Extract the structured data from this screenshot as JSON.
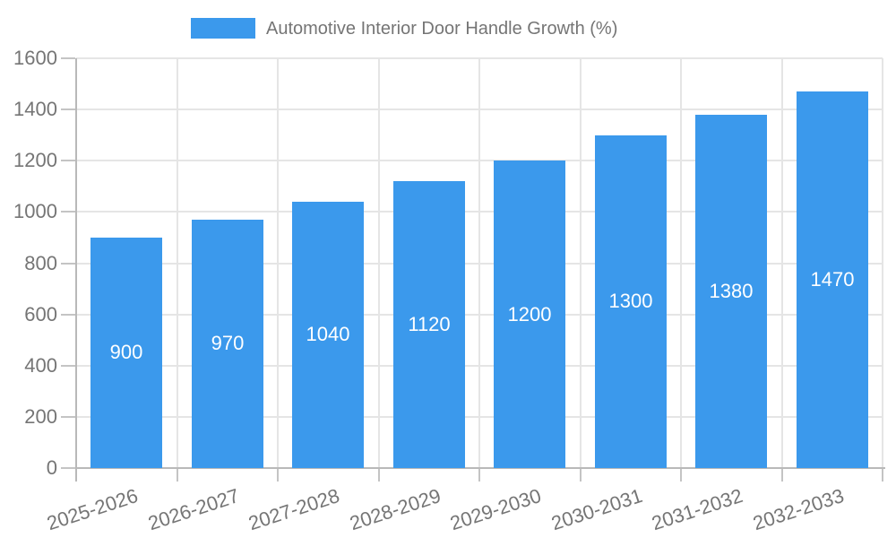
{
  "legend": {
    "label": "Automotive Interior Door Handle Growth (%)"
  },
  "colors": {
    "bar": "#3B99EC",
    "axis_text": "#757575",
    "grid_line": "#e5e5e5",
    "axis_line": "#b9b9b9",
    "bar_label": "#ffffff"
  },
  "chart_data": {
    "type": "bar",
    "title": "Automotive Interior Door Handle Growth (%)",
    "categories": [
      "2025-2026",
      "2026-2027",
      "2027-2028",
      "2028-2029",
      "2029-2030",
      "2030-2031",
      "2031-2032",
      "2032-2033"
    ],
    "series": [
      {
        "name": "Automotive Interior Door Handle Growth (%)",
        "values": [
          900,
          970,
          1040,
          1120,
          1200,
          1300,
          1380,
          1470
        ]
      }
    ],
    "data_labels": [
      "900",
      "970",
      "1040",
      "1120",
      "1200",
      "1300",
      "1380",
      "1470"
    ],
    "xlabel": "",
    "ylabel": "",
    "ylim": [
      0,
      1600
    ],
    "yticks": [
      0,
      200,
      400,
      600,
      800,
      1000,
      1200,
      1400,
      1600
    ],
    "grid": "on",
    "legend_position": "top-center",
    "bar_label_position": "center-of-bar",
    "xtick_rotation_deg": -18
  }
}
